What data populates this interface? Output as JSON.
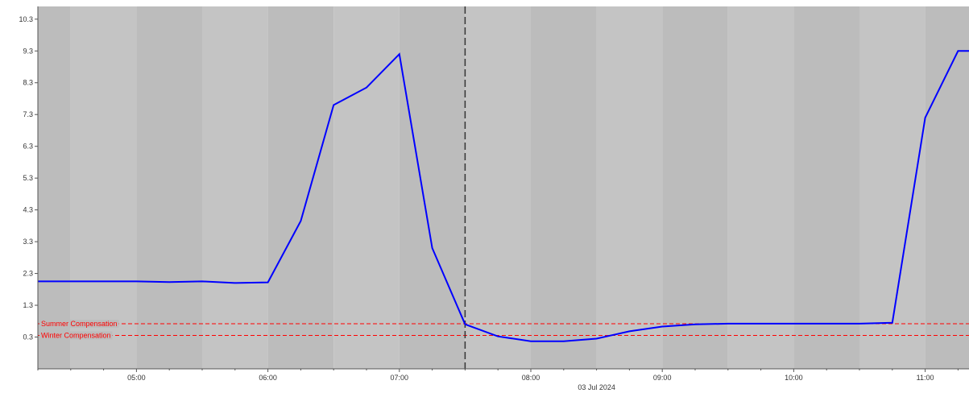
{
  "chart_data": {
    "type": "line",
    "date_label": "03 Jul 2024",
    "x_ticks": [
      "05:00",
      "06:00",
      "07:00",
      "08:00",
      "09:00",
      "10:00",
      "11:00"
    ],
    "x_range": [
      "04:15",
      "11:20"
    ],
    "y_ticks": [
      "0.3",
      "1.3",
      "2.3",
      "3.3",
      "4.3",
      "5.3",
      "6.3",
      "7.3",
      "8.3",
      "9.3",
      "10.3"
    ],
    "ylim": [
      -0.7,
      10.7
    ],
    "grid": false,
    "cursor_time": "07:30",
    "series": [
      {
        "color": "#0000ff",
        "x": [
          "04:15",
          "04:30",
          "04:45",
          "05:00",
          "05:15",
          "05:30",
          "05:45",
          "06:00",
          "06:15",
          "06:30",
          "06:45",
          "07:00",
          "07:15",
          "07:30",
          "07:45",
          "08:00",
          "08:15",
          "08:30",
          "08:45",
          "09:00",
          "09:15",
          "09:30",
          "09:45",
          "10:00",
          "10:15",
          "10:30",
          "10:45",
          "11:00",
          "11:15",
          "11:20"
        ],
        "values": [
          2.05,
          2.05,
          2.05,
          2.05,
          2.03,
          2.05,
          2.0,
          2.02,
          3.95,
          7.6,
          8.15,
          9.2,
          3.1,
          0.7,
          0.32,
          0.17,
          0.17,
          0.25,
          0.48,
          0.63,
          0.7,
          0.72,
          0.72,
          0.72,
          0.72,
          0.72,
          0.75,
          7.2,
          9.3,
          9.3
        ]
      }
    ],
    "thresholds": [
      {
        "label": "Summer Compensation",
        "value": 0.72,
        "color": "#ff0000"
      },
      {
        "label": "Winter Compensation",
        "value": 0.35,
        "color": "#ff0000"
      }
    ]
  },
  "colors": {
    "band_a": "#bcbcbc",
    "band_b": "#c4c4c4",
    "axis": "#555555",
    "cursor": "#333333"
  }
}
